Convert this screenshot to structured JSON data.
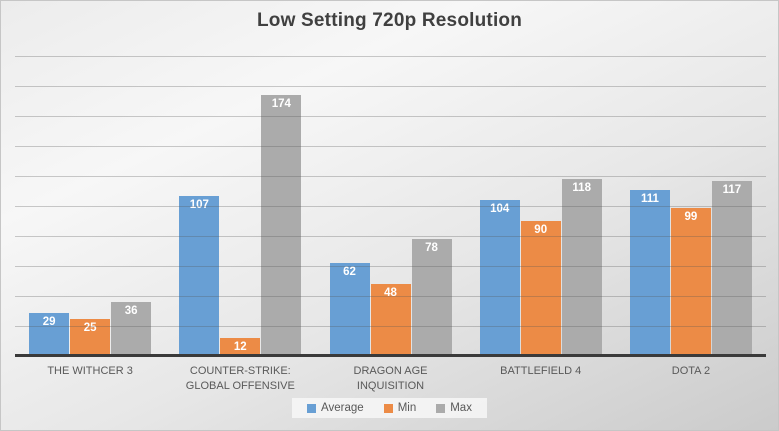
{
  "chart_data": {
    "type": "bar",
    "title": "Low Setting 720p Resolution",
    "categories": [
      "THE WITHCER 3",
      "COUNTER-STRIKE: GLOBAL OFFENSIVE",
      "DRAGON AGE INQUISITION",
      "BATTLEFIELD 4",
      "DOTA 2"
    ],
    "series": [
      {
        "name": "Average",
        "color": "#689fd4",
        "values": [
          29,
          107,
          62,
          104,
          111
        ]
      },
      {
        "name": "Min",
        "color": "#ec8b46",
        "values": [
          25,
          12,
          48,
          90,
          99
        ]
      },
      {
        "name": "Max",
        "color": "#ababab",
        "values": [
          36,
          174,
          78,
          118,
          117
        ]
      }
    ],
    "xlabel": "",
    "ylabel": "",
    "ylim": [
      0,
      200
    ],
    "grid_step": 20,
    "grid": true,
    "gridlines_over_bars": true,
    "data_labels": true,
    "data_label_color": "#ffffff",
    "legend_position": "bottom"
  },
  "colors": {
    "title_text": "#404040",
    "axis_line": "#3a3a3a",
    "category_text": "#595959",
    "legend_text": "#595959",
    "background_top": "#f7f7f7",
    "background_bottom": "#cbcbcb"
  }
}
